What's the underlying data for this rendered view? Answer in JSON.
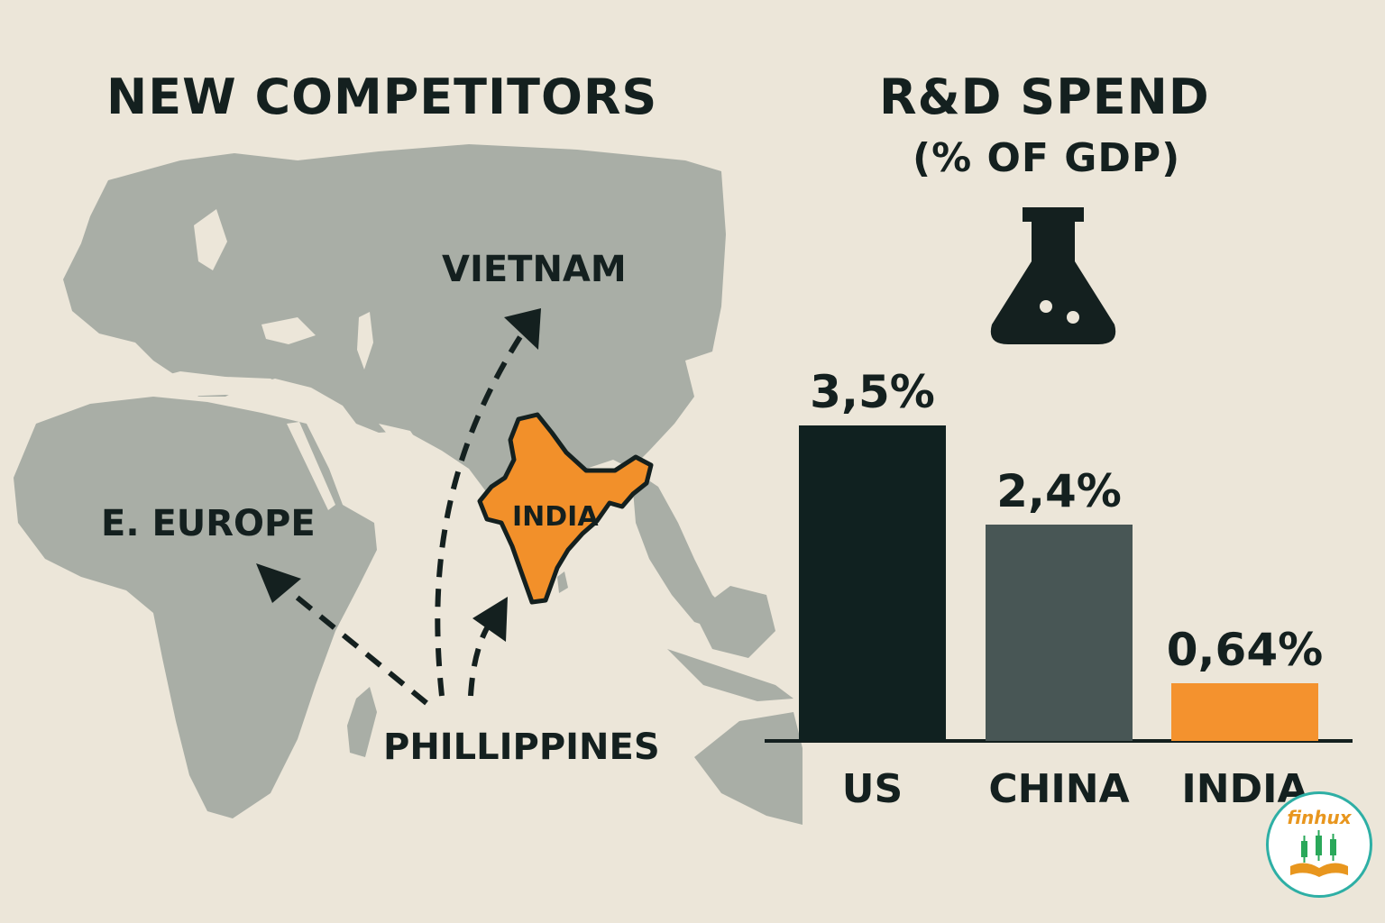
{
  "titles": {
    "left": "NEW COMPETITORS",
    "right": "R&D SPEND",
    "right_sub": "(% OF GDP)"
  },
  "map": {
    "labels": {
      "vietnam": "VIETNAM",
      "europe": "E. EUROPE",
      "philippines": "PHILLIPPINES",
      "india": "INDIA"
    },
    "colors": {
      "land": "#A9AEA6",
      "highlight": "#F2902A",
      "arrow": "#14201F"
    }
  },
  "icons": {
    "flask": "flask-icon"
  },
  "logo": {
    "text": "finhux"
  },
  "chart_data": {
    "type": "bar",
    "categories": [
      "US",
      "CHINA",
      "INDIA"
    ],
    "values": [
      3.5,
      2.4,
      0.64
    ],
    "value_labels": [
      "3,5%",
      "2,4%",
      "0,64%"
    ],
    "colors": [
      "#102120",
      "#485655",
      "#F4922E"
    ],
    "title": "R&D SPEND",
    "subtitle": "(% OF GDP)",
    "ylim": [
      0,
      4.9
    ],
    "grid": false
  }
}
